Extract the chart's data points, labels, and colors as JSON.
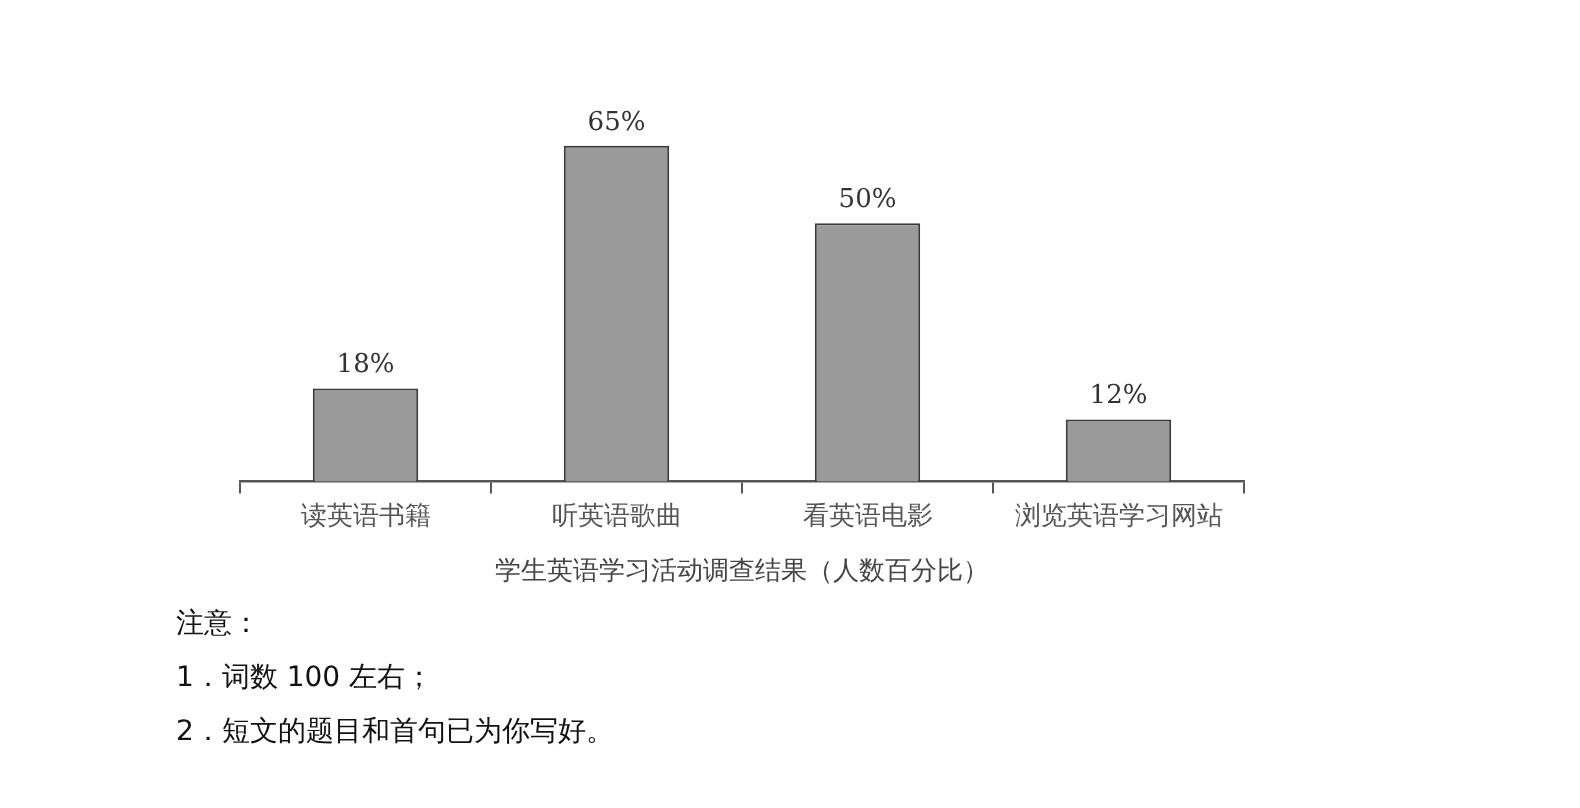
{
  "chart_data": {
    "type": "bar",
    "categories": [
      "读英语书籍",
      "听英语歌曲",
      "看英语电影",
      "浏览英语学习网站"
    ],
    "values": [
      18,
      65,
      50,
      12
    ],
    "value_labels": [
      "18%",
      "65%",
      "50%",
      "12%"
    ],
    "color": "#9a9a9a",
    "xlabel": "学生英语学习活动调查结果（人数百分比）",
    "annotations": [
      "注意：",
      "1．词数 100 左右；",
      "2．短文的题目和首句已为你写好。"
    ]
  }
}
